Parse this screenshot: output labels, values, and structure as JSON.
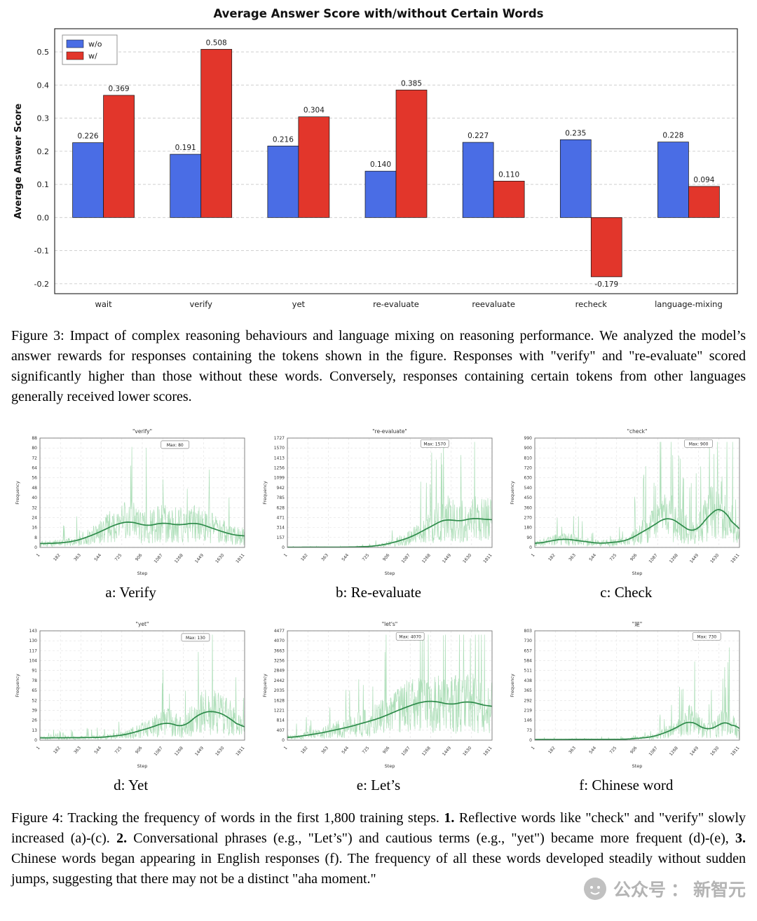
{
  "figure3": {
    "caption": "Figure 3: Impact of complex reasoning behaviours and language mixing on reasoning performance. We analyzed the model’s answer rewards for responses containing the tokens shown in the figure. Responses with \"verify\" and \"re-evaluate\" scored significantly higher than those without these words. Conversely, responses containing certain tokens from other languages generally received lower scores."
  },
  "figure4": {
    "caption_parts": {
      "p1": "Figure 4: Tracking the frequency of words in the first 1,800 training steps. ",
      "b1": "1.",
      "p2": " Reflective words like \"check\" and \"verify\" slowly increased (a)-(c). ",
      "b2": "2.",
      "p3": " Conversational phrases (e.g., \"Let’s\") and cautious terms (e.g., \"yet\") became more frequent (d)-(e), ",
      "b3": "3.",
      "p4": " Chinese words began appearing in English responses (f). The frequency of all these words developed steadily without sudden jumps, suggesting that there may not be a distinct \"aha moment.\""
    }
  },
  "watermark": {
    "label1": "公众号",
    "sep": "：",
    "label2": "新智元"
  },
  "chart_data": [
    {
      "type": "bar",
      "title": "Average Answer Score with/without Certain Words",
      "ylabel": "Average Answer Score",
      "xlabel": "",
      "categories": [
        "wait",
        "verify",
        "yet",
        "re-evaluate",
        "reevaluate",
        "recheck",
        "language-mixing"
      ],
      "series": [
        {
          "name": "w/o",
          "color": "#4a6de5",
          "values": [
            0.226,
            0.191,
            0.216,
            0.14,
            0.227,
            0.235,
            0.228
          ]
        },
        {
          "name": "w/",
          "color": "#e2362b",
          "values": [
            0.369,
            0.508,
            0.304,
            0.385,
            0.11,
            -0.179,
            0.094
          ]
        }
      ],
      "ylim": [
        -0.23,
        0.57
      ],
      "yticks": [
        -0.2,
        -0.1,
        0.0,
        0.1,
        0.2,
        0.3,
        0.4,
        0.5
      ],
      "grid": "dashed-horizontal",
      "legend_position": "top-left"
    },
    {
      "type": "line",
      "caption": "a: Verify",
      "title": "\"verify\"",
      "xlabel": "Step",
      "ylabel": "Frequency",
      "max_label": "Max: 80",
      "max_value": 80,
      "ymax": 88,
      "ytick_step": 8,
      "xticks": [
        1,
        182,
        363,
        544,
        725,
        906,
        1087,
        1268,
        1449,
        1630,
        1811
      ],
      "xmax": 1811,
      "seed": 1,
      "ann": [
        0.66,
        0.06
      ],
      "shape": [
        [
          0,
          0.035
        ],
        [
          0.1,
          0.04
        ],
        [
          0.18,
          0.06
        ],
        [
          0.28,
          0.13
        ],
        [
          0.38,
          0.22
        ],
        [
          0.45,
          0.24
        ],
        [
          0.52,
          0.19
        ],
        [
          0.6,
          0.23
        ],
        [
          0.68,
          0.2
        ],
        [
          0.76,
          0.23
        ],
        [
          0.85,
          0.17
        ],
        [
          0.93,
          0.12
        ],
        [
          1,
          0.1
        ]
      ]
    },
    {
      "type": "line",
      "caption": "b: Re-evaluate",
      "title": "\"re-evaluate\"",
      "xlabel": "Step",
      "ylabel": "Frequency",
      "max_label": "Max: 1570",
      "max_value": 1570,
      "ymax": 1727,
      "ytick_step": 157,
      "xticks": [
        1,
        182,
        363,
        544,
        725,
        906,
        1087,
        1268,
        1449,
        1630,
        1811
      ],
      "xmax": 1811,
      "seed": 2,
      "ann": [
        0.72,
        0.05
      ],
      "shape": [
        [
          0,
          0.002
        ],
        [
          0.3,
          0.003
        ],
        [
          0.42,
          0.01
        ],
        [
          0.5,
          0.035
        ],
        [
          0.6,
          0.09
        ],
        [
          0.7,
          0.19
        ],
        [
          0.78,
          0.27
        ],
        [
          0.83,
          0.23
        ],
        [
          0.9,
          0.27
        ],
        [
          1,
          0.25
        ]
      ]
    },
    {
      "type": "line",
      "caption": "c: Check",
      "title": "\"check\"",
      "xlabel": "Step",
      "ylabel": "Frequency",
      "max_label": "Max: 900",
      "max_value": 900,
      "ymax": 990,
      "ytick_step": 90,
      "xticks": [
        1,
        182,
        363,
        544,
        725,
        906,
        1087,
        1268,
        1449,
        1630,
        1811
      ],
      "xmax": 1811,
      "seed": 3,
      "ann": [
        0.8,
        0.05
      ],
      "shape": [
        [
          0,
          0.03
        ],
        [
          0.08,
          0.06
        ],
        [
          0.14,
          0.08
        ],
        [
          0.22,
          0.06
        ],
        [
          0.32,
          0.035
        ],
        [
          0.45,
          0.06
        ],
        [
          0.58,
          0.2
        ],
        [
          0.65,
          0.29
        ],
        [
          0.72,
          0.2
        ],
        [
          0.78,
          0.12
        ],
        [
          0.86,
          0.32
        ],
        [
          0.92,
          0.38
        ],
        [
          1,
          0.1
        ]
      ]
    },
    {
      "type": "line",
      "caption": "d: Yet",
      "title": "\"yet\"",
      "xlabel": "Step",
      "ylabel": "Frequency",
      "max_label": "Max: 130",
      "max_value": 130,
      "ymax": 143,
      "ytick_step": 13,
      "xticks": [
        1,
        182,
        363,
        544,
        725,
        906,
        1087,
        1268,
        1449,
        1630,
        1811
      ],
      "xmax": 1811,
      "seed": 4,
      "ann": [
        0.76,
        0.06
      ],
      "shape": [
        [
          0,
          0.02
        ],
        [
          0.3,
          0.025
        ],
        [
          0.42,
          0.05
        ],
        [
          0.55,
          0.12
        ],
        [
          0.62,
          0.17
        ],
        [
          0.7,
          0.11
        ],
        [
          0.78,
          0.25
        ],
        [
          0.86,
          0.27
        ],
        [
          0.93,
          0.2
        ],
        [
          1,
          0.09
        ]
      ]
    },
    {
      "type": "line",
      "caption": "e: Let’s",
      "title": "\"let's\"",
      "xlabel": "Step",
      "ylabel": "Frequency",
      "max_label": "Max: 4070",
      "max_value": 4070,
      "ymax": 4477,
      "ytick_step": 407,
      "xticks": [
        1,
        182,
        363,
        544,
        725,
        906,
        1087,
        1268,
        1449,
        1630,
        1811
      ],
      "xmax": 1811,
      "seed": 5,
      "ann": [
        0.6,
        0.05
      ],
      "shape": [
        [
          0,
          0.02
        ],
        [
          0.15,
          0.06
        ],
        [
          0.3,
          0.12
        ],
        [
          0.45,
          0.2
        ],
        [
          0.55,
          0.28
        ],
        [
          0.65,
          0.35
        ],
        [
          0.72,
          0.36
        ],
        [
          0.8,
          0.32
        ],
        [
          0.88,
          0.36
        ],
        [
          1,
          0.3
        ]
      ]
    },
    {
      "type": "line",
      "caption": "f: Chinese word",
      "title": "\"是\"",
      "xlabel": "Step",
      "ylabel": "Frequency",
      "max_label": "Max: 730",
      "max_value": 730,
      "ymax": 803,
      "ytick_step": 73,
      "xticks": [
        1,
        182,
        363,
        544,
        725,
        906,
        1087,
        1268,
        1449,
        1630,
        1811
      ],
      "xmax": 1811,
      "seed": 6,
      "ann": [
        0.84,
        0.05
      ],
      "shape": [
        [
          0,
          0.006
        ],
        [
          0.45,
          0.008
        ],
        [
          0.58,
          0.03
        ],
        [
          0.68,
          0.1
        ],
        [
          0.76,
          0.19
        ],
        [
          0.84,
          0.08
        ],
        [
          0.9,
          0.14
        ],
        [
          0.95,
          0.19
        ],
        [
          1,
          0.05
        ]
      ]
    }
  ]
}
